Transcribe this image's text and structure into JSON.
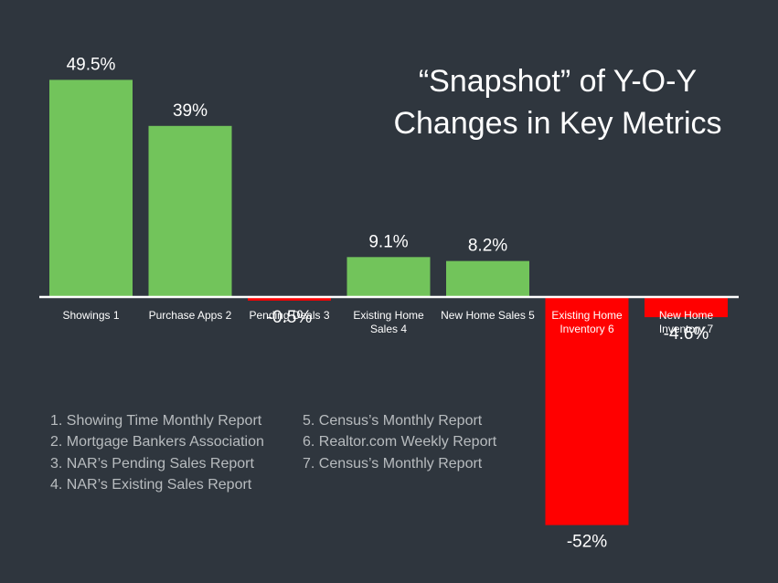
{
  "title": {
    "line1": "“Snapshot” of Y-O-Y",
    "line2": "Changes in Key Metrics"
  },
  "colors": {
    "background": "#2f363e",
    "positive": "#72c45b",
    "negative": "#ff0000",
    "text": "#ffffff",
    "source_text": "#b8bcbf"
  },
  "chart_data": {
    "type": "bar",
    "categories": [
      [
        "Showings 1"
      ],
      [
        "Purchase Apps 2"
      ],
      [
        "Pending Deals 3"
      ],
      [
        "Existing Home",
        "Sales 4"
      ],
      [
        "New Home Sales 5"
      ],
      [
        "Existing Home",
        "Inventory 6"
      ],
      [
        "New Home",
        "Inventory 7"
      ]
    ],
    "values": [
      49.5,
      39,
      -0.5,
      9.1,
      8.2,
      -52,
      -4.6
    ],
    "value_labels": [
      "49.5%",
      "39%",
      "-0.5%",
      "9.1%",
      "8.2%",
      "-52%",
      "-4.6%"
    ],
    "title": "“Snapshot” of Y-O-Y Changes in Key Metrics",
    "grid": false
  },
  "sources": {
    "left": [
      "1. Showing Time Monthly Report",
      "2. Mortgage Bankers Association",
      "3. NAR’s Pending Sales Report",
      "4. NAR’s Existing Sales Report"
    ],
    "right": [
      "5. Census’s Monthly Report",
      "6. Realtor.com Weekly Report",
      "7. Census’s Monthly Report"
    ]
  }
}
